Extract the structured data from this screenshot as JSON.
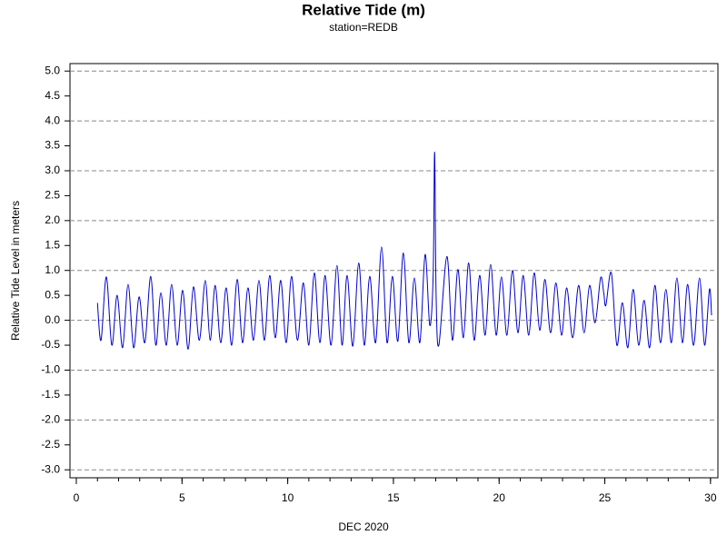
{
  "chart_data": {
    "type": "line",
    "title": "Relative Tide (m)",
    "subtitle": "station=REDB",
    "xlabel": "DEC 2020",
    "ylabel": "Relative Tide Level in meters",
    "xlim": [
      -0.3,
      30.35
    ],
    "ylim": [
      -3.16,
      5.15
    ],
    "xticks": [
      0,
      5,
      10,
      15,
      20,
      25,
      30
    ],
    "xminorticks": [
      0,
      1,
      2,
      3,
      4,
      5,
      6,
      7,
      8,
      9,
      10,
      11,
      12,
      13,
      14,
      15,
      16,
      17,
      18,
      19,
      20,
      21,
      22,
      23,
      24,
      25,
      26,
      27,
      28,
      29,
      30
    ],
    "yticks": [
      {
        "value": 5,
        "label": "5.0"
      },
      4.5,
      {
        "value": 4,
        "label": "4.0"
      },
      3.5,
      {
        "value": 3,
        "label": "3.0"
      },
      2.5,
      {
        "value": 2,
        "label": "2.0"
      },
      1.5,
      {
        "value": 1,
        "label": "1.0"
      },
      0.5,
      {
        "value": 0,
        "label": "0.0"
      },
      -0.5,
      {
        "value": -1,
        "label": "-1.0"
      },
      -1.5,
      {
        "value": -2,
        "label": "-2.0"
      },
      -2.5,
      {
        "value": -3,
        "label": "-3.0"
      }
    ],
    "grid": true,
    "series": [
      {
        "name": "Relative Tide",
        "color": "#0000cc",
        "x": [
          1.0,
          1.17,
          1.42,
          1.68,
          1.93,
          2.19,
          2.45,
          2.71,
          2.97,
          3.24,
          3.52,
          3.76,
          4.0,
          4.26,
          4.51,
          4.77,
          5.03,
          5.29,
          5.54,
          5.82,
          6.1,
          6.33,
          6.57,
          6.83,
          7.09,
          7.35,
          7.61,
          7.86,
          8.12,
          8.38,
          8.64,
          8.9,
          9.15,
          9.41,
          9.67,
          9.93,
          10.18,
          10.46,
          10.74,
          11.0,
          11.26,
          11.52,
          11.77,
          12.05,
          12.33,
          12.57,
          12.81,
          13.08,
          13.36,
          13.62,
          13.88,
          14.16,
          14.44,
          14.7,
          14.95,
          15.21,
          15.47,
          15.73,
          15.99,
          16.25,
          16.5,
          16.72,
          16.88,
          16.95,
          17.02,
          17.15,
          17.53,
          17.79,
          18.05,
          18.31,
          18.56,
          18.82,
          19.08,
          19.34,
          19.6,
          19.86,
          20.11,
          20.37,
          20.63,
          20.89,
          21.14,
          21.4,
          21.66,
          21.92,
          22.17,
          22.43,
          22.69,
          22.95,
          23.2,
          23.48,
          23.76,
          24.02,
          24.28,
          24.54,
          24.8,
          24.95,
          25.05,
          25.31,
          25.57,
          25.83,
          26.09,
          26.34,
          26.6,
          26.86,
          27.12,
          27.37,
          27.63,
          27.89,
          28.15,
          28.41,
          28.67,
          28.92,
          29.2,
          29.48,
          29.72,
          29.95,
          30.05
        ],
        "values": [
          0.35,
          -0.4,
          0.87,
          -0.5,
          0.5,
          -0.55,
          0.72,
          -0.55,
          0.47,
          -0.45,
          0.88,
          -0.5,
          0.55,
          -0.5,
          0.72,
          -0.5,
          0.6,
          -0.58,
          0.67,
          -0.4,
          0.8,
          -0.4,
          0.7,
          -0.45,
          0.65,
          -0.5,
          0.82,
          -0.45,
          0.65,
          -0.4,
          0.8,
          -0.4,
          0.9,
          -0.35,
          0.8,
          -0.45,
          0.88,
          -0.4,
          0.75,
          -0.5,
          0.95,
          -0.45,
          0.9,
          -0.5,
          1.1,
          -0.5,
          0.9,
          -0.52,
          1.15,
          -0.5,
          0.88,
          -0.45,
          1.47,
          -0.45,
          0.88,
          -0.42,
          1.35,
          -0.45,
          0.85,
          -0.45,
          1.32,
          -0.1,
          0.9,
          3.37,
          0.5,
          -0.5,
          1.28,
          -0.4,
          1.02,
          -0.35,
          1.15,
          -0.4,
          0.9,
          -0.3,
          1.12,
          -0.3,
          0.87,
          -0.3,
          1.0,
          -0.25,
          0.9,
          -0.3,
          0.95,
          -0.2,
          0.82,
          -0.25,
          0.75,
          -0.3,
          0.65,
          -0.35,
          0.7,
          -0.25,
          0.7,
          -0.05,
          0.85,
          0.55,
          0.3,
          0.95,
          -0.5,
          0.35,
          -0.55,
          0.62,
          -0.5,
          0.4,
          -0.55,
          0.7,
          -0.45,
          0.62,
          -0.45,
          0.85,
          -0.45,
          0.72,
          -0.5,
          0.85,
          -0.5,
          0.62,
          0.1
        ]
      }
    ]
  }
}
